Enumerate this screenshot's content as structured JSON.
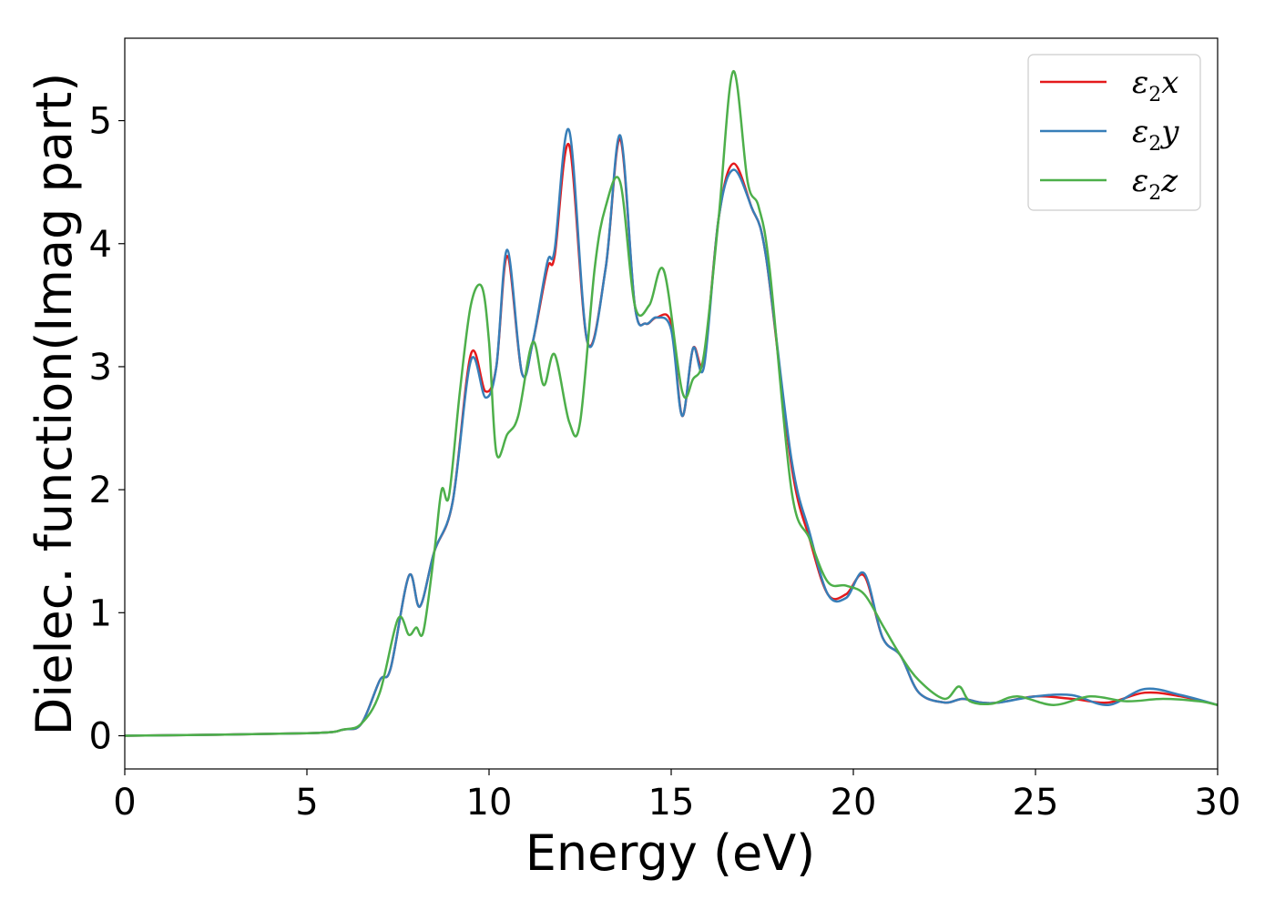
{
  "chart_data": {
    "type": "line",
    "xlabel": "Energy (eV)",
    "ylabel": "Dielec. function(Imag part)",
    "xlim": [
      0,
      30
    ],
    "ylim": [
      -0.27,
      5.67
    ],
    "xticks": [
      0,
      5,
      10,
      15,
      20,
      25,
      30
    ],
    "yticks": [
      0,
      1,
      2,
      3,
      4,
      5
    ],
    "xtick_labels": [
      "0",
      "5",
      "10",
      "15",
      "20",
      "25",
      "30"
    ],
    "ytick_labels": [
      "0",
      "1",
      "2",
      "3",
      "4",
      "5"
    ],
    "grid": false,
    "legend_position": "top-right",
    "series": [
      {
        "name": "ε2x",
        "legend_symbol": "ε",
        "legend_sub": "2",
        "legend_var": "x",
        "color": "#e41a1c",
        "points": [
          [
            0,
            0
          ],
          [
            5,
            0.02
          ],
          [
            6,
            0.05
          ],
          [
            6.5,
            0.1
          ],
          [
            7,
            0.45
          ],
          [
            7.3,
            0.55
          ],
          [
            7.8,
            1.3
          ],
          [
            8.1,
            1.05
          ],
          [
            8.5,
            1.5
          ],
          [
            9,
            1.9
          ],
          [
            9.5,
            3.1
          ],
          [
            9.9,
            2.8
          ],
          [
            10.2,
            3.0
          ],
          [
            10.5,
            3.9
          ],
          [
            10.9,
            2.95
          ],
          [
            11.2,
            3.2
          ],
          [
            11.6,
            3.8
          ],
          [
            11.8,
            3.9
          ],
          [
            12.2,
            4.8
          ],
          [
            12.7,
            3.2
          ],
          [
            13.2,
            3.8
          ],
          [
            13.6,
            4.85
          ],
          [
            14,
            3.5
          ],
          [
            14.3,
            3.35
          ],
          [
            14.6,
            3.4
          ],
          [
            15,
            3.35
          ],
          [
            15.3,
            2.6
          ],
          [
            15.6,
            3.15
          ],
          [
            15.9,
            3.05
          ],
          [
            16.3,
            4.2
          ],
          [
            16.7,
            4.65
          ],
          [
            17.2,
            4.3
          ],
          [
            17.6,
            3.9
          ],
          [
            18.3,
            2.2
          ],
          [
            18.8,
            1.6
          ],
          [
            19.3,
            1.15
          ],
          [
            19.8,
            1.15
          ],
          [
            20.3,
            1.3
          ],
          [
            20.8,
            0.8
          ],
          [
            21.3,
            0.65
          ],
          [
            21.8,
            0.35
          ],
          [
            22.5,
            0.27
          ],
          [
            23,
            0.3
          ],
          [
            23.5,
            0.27
          ],
          [
            24,
            0.27
          ],
          [
            25,
            0.32
          ],
          [
            26,
            0.3
          ],
          [
            27,
            0.27
          ],
          [
            28,
            0.35
          ],
          [
            29,
            0.32
          ],
          [
            30,
            0.25
          ]
        ]
      },
      {
        "name": "ε2y",
        "legend_symbol": "ε",
        "legend_sub": "2",
        "legend_var": "y",
        "color": "#377eb8",
        "points": [
          [
            0,
            0
          ],
          [
            5,
            0.02
          ],
          [
            6,
            0.05
          ],
          [
            6.5,
            0.1
          ],
          [
            7,
            0.45
          ],
          [
            7.3,
            0.55
          ],
          [
            7.8,
            1.3
          ],
          [
            8.1,
            1.05
          ],
          [
            8.5,
            1.5
          ],
          [
            9,
            1.9
          ],
          [
            9.5,
            3.05
          ],
          [
            9.9,
            2.75
          ],
          [
            10.2,
            3.0
          ],
          [
            10.5,
            3.95
          ],
          [
            10.9,
            2.95
          ],
          [
            11.2,
            3.2
          ],
          [
            11.6,
            3.85
          ],
          [
            11.8,
            3.95
          ],
          [
            12.2,
            4.92
          ],
          [
            12.7,
            3.2
          ],
          [
            13.2,
            3.8
          ],
          [
            13.6,
            4.88
          ],
          [
            14,
            3.5
          ],
          [
            14.3,
            3.35
          ],
          [
            14.6,
            3.4
          ],
          [
            15,
            3.3
          ],
          [
            15.3,
            2.6
          ],
          [
            15.6,
            3.15
          ],
          [
            15.9,
            3.0
          ],
          [
            16.3,
            4.2
          ],
          [
            16.7,
            4.6
          ],
          [
            17.2,
            4.3
          ],
          [
            17.6,
            3.9
          ],
          [
            18.3,
            2.25
          ],
          [
            18.8,
            1.65
          ],
          [
            19.3,
            1.15
          ],
          [
            19.8,
            1.12
          ],
          [
            20.3,
            1.32
          ],
          [
            20.8,
            0.8
          ],
          [
            21.3,
            0.65
          ],
          [
            21.8,
            0.35
          ],
          [
            22.5,
            0.27
          ],
          [
            23,
            0.3
          ],
          [
            23.5,
            0.27
          ],
          [
            24,
            0.27
          ],
          [
            25,
            0.32
          ],
          [
            26,
            0.33
          ],
          [
            27,
            0.25
          ],
          [
            28,
            0.38
          ],
          [
            29,
            0.33
          ],
          [
            30,
            0.25
          ]
        ]
      },
      {
        "name": "ε2z",
        "legend_symbol": "ε",
        "legend_sub": "2",
        "legend_var": "z",
        "color": "#4daf4a",
        "points": [
          [
            0,
            0
          ],
          [
            5,
            0.02
          ],
          [
            6,
            0.05
          ],
          [
            6.5,
            0.1
          ],
          [
            7,
            0.35
          ],
          [
            7.5,
            0.95
          ],
          [
            7.8,
            0.82
          ],
          [
            8,
            0.88
          ],
          [
            8.2,
            0.85
          ],
          [
            8.5,
            1.5
          ],
          [
            8.7,
            2.0
          ],
          [
            8.9,
            1.95
          ],
          [
            9.2,
            2.8
          ],
          [
            9.5,
            3.5
          ],
          [
            9.8,
            3.65
          ],
          [
            10,
            3.2
          ],
          [
            10.2,
            2.3
          ],
          [
            10.5,
            2.45
          ],
          [
            10.8,
            2.6
          ],
          [
            11.2,
            3.2
          ],
          [
            11.5,
            2.85
          ],
          [
            11.8,
            3.1
          ],
          [
            12.2,
            2.55
          ],
          [
            12.5,
            2.55
          ],
          [
            12.9,
            3.8
          ],
          [
            13.2,
            4.3
          ],
          [
            13.6,
            4.5
          ],
          [
            14,
            3.5
          ],
          [
            14.4,
            3.5
          ],
          [
            14.8,
            3.78
          ],
          [
            15.3,
            2.8
          ],
          [
            15.6,
            2.9
          ],
          [
            15.9,
            3.1
          ],
          [
            16.3,
            4.2
          ],
          [
            16.7,
            5.4
          ],
          [
            17.1,
            4.5
          ],
          [
            17.4,
            4.3
          ],
          [
            17.7,
            3.8
          ],
          [
            18.3,
            2.0
          ],
          [
            18.8,
            1.6
          ],
          [
            19.3,
            1.25
          ],
          [
            19.8,
            1.22
          ],
          [
            20.3,
            1.15
          ],
          [
            20.8,
            0.9
          ],
          [
            21.3,
            0.65
          ],
          [
            21.8,
            0.45
          ],
          [
            22.5,
            0.3
          ],
          [
            22.9,
            0.4
          ],
          [
            23.2,
            0.28
          ],
          [
            23.8,
            0.26
          ],
          [
            24.5,
            0.32
          ],
          [
            25.5,
            0.25
          ],
          [
            26.5,
            0.32
          ],
          [
            27.5,
            0.28
          ],
          [
            28.5,
            0.3
          ],
          [
            29.5,
            0.28
          ],
          [
            30,
            0.25
          ]
        ]
      }
    ]
  }
}
